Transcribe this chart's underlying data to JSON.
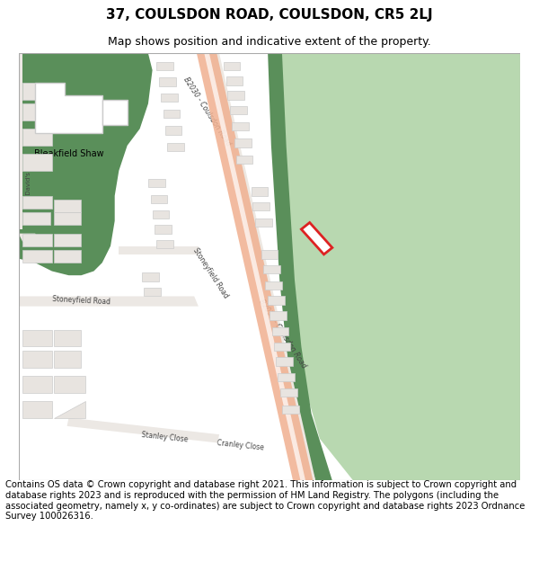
{
  "title_line1": "37, COULSDON ROAD, COULSDON, CR5 2LJ",
  "title_line2": "Map shows position and indicative extent of the property.",
  "footer_text": "Contains OS data © Crown copyright and database right 2021. This information is subject to Crown copyright and database rights 2023 and is reproduced with the permission of HM Land Registry. The polygons (including the associated geometry, namely x, y co-ordinates) are subject to Crown copyright and database rights 2023 Ordnance Survey 100026316.",
  "bg_color": "#f5f3f0",
  "road_salmon": "#f0b090",
  "road_white_stripe": "#ffffff",
  "dark_green": "#5a8f5a",
  "light_green": "#b8d8b0",
  "building_fill": "#e8e4e0",
  "building_edge": "#cccccc",
  "white_building": "#ffffff",
  "white_building_edge": "#cccccc",
  "highlight_fill": "#ffffff",
  "highlight_edge": "#dd2222",
  "text_color": "#444444",
  "title_fontsize": 11,
  "subtitle_fontsize": 9,
  "footer_fontsize": 7.2,
  "fig_width": 6.0,
  "fig_height": 6.25
}
